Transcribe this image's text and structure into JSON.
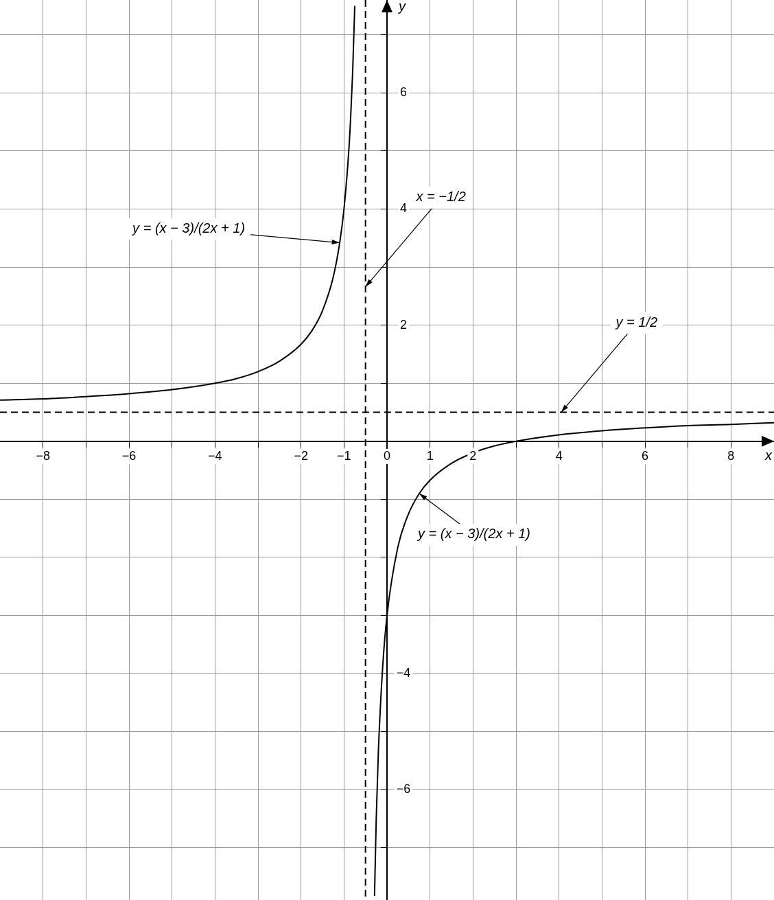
{
  "chart_data": {
    "type": "line",
    "xlabel": "x",
    "ylabel": "y",
    "xlim": [
      -9,
      9
    ],
    "ylim": [
      -7.9,
      7.6
    ],
    "xticks": [
      -8,
      {
        "value": -7,
        "label": null
      },
      -6,
      {
        "value": -5,
        "label": null
      },
      -4,
      {
        "value": -3,
        "label": null
      },
      -2,
      -1,
      0,
      1,
      2,
      {
        "value": 3,
        "label": null
      },
      4,
      {
        "value": 5,
        "label": null
      },
      6,
      {
        "value": 7,
        "label": null
      },
      8
    ],
    "yticks": [
      {
        "value": -7,
        "label": null
      },
      -6,
      {
        "value": -5,
        "label": null
      },
      -4,
      {
        "value": -3,
        "label": null
      },
      {
        "value": -2,
        "label": null
      },
      {
        "value": -1,
        "label": null
      },
      {
        "value": 0,
        "label": null
      },
      {
        "value": 1,
        "label": null
      },
      2,
      {
        "value": 3,
        "label": null
      },
      4,
      {
        "value": 5,
        "label": null
      },
      6,
      {
        "value": 7,
        "label": null
      }
    ],
    "grid": true,
    "marker": "none",
    "line_style": "solid",
    "series": [
      {
        "color": "#000000",
        "x": [
          -9,
          -8,
          -7,
          -6,
          -5,
          -4,
          -3.5,
          -3,
          -2.5,
          -2,
          -1.75,
          -1.5,
          -1.25,
          -1.1,
          -1,
          -0.9,
          -0.85,
          -0.8,
          -0.75
        ],
        "values": [
          0.71,
          0.73,
          0.77,
          0.82,
          0.89,
          1,
          1.08,
          1.2,
          1.38,
          1.67,
          1.9,
          2.25,
          2.83,
          3.42,
          4,
          4.88,
          5.5,
          6.33,
          7.5
        ]
      },
      {
        "color": "#000000",
        "x": [
          -0.29,
          -0.25,
          -0.2,
          -0.1,
          0,
          0.25,
          0.5,
          0.75,
          1,
          1.5,
          2,
          2.5,
          3,
          4,
          5,
          6,
          7,
          8,
          9
        ],
        "values": [
          -7.83,
          -6.5,
          -5.33,
          -3.88,
          -3,
          -1.83,
          -1.25,
          -0.9,
          -0.67,
          -0.38,
          -0.2,
          -0.08,
          0,
          0.11,
          0.18,
          0.23,
          0.27,
          0.29,
          0.32
        ]
      }
    ],
    "ref_lines": [
      {
        "axis": "x",
        "value": -0.5,
        "label": "x = −1/2",
        "line_style": "dashed",
        "color": "#000000"
      },
      {
        "axis": "y",
        "value": 0.5,
        "label": "y = 1/2",
        "line_style": "dashed",
        "color": "#000000"
      }
    ],
    "annotations": [
      {
        "text": "y = (x − 3)/(2x + 1)",
        "x": 0.75,
        "y": -0.9
      },
      {
        "text": "y = (x − 3)/(2x + 1)",
        "x": -1.1,
        "y": 3.42
      }
    ]
  }
}
